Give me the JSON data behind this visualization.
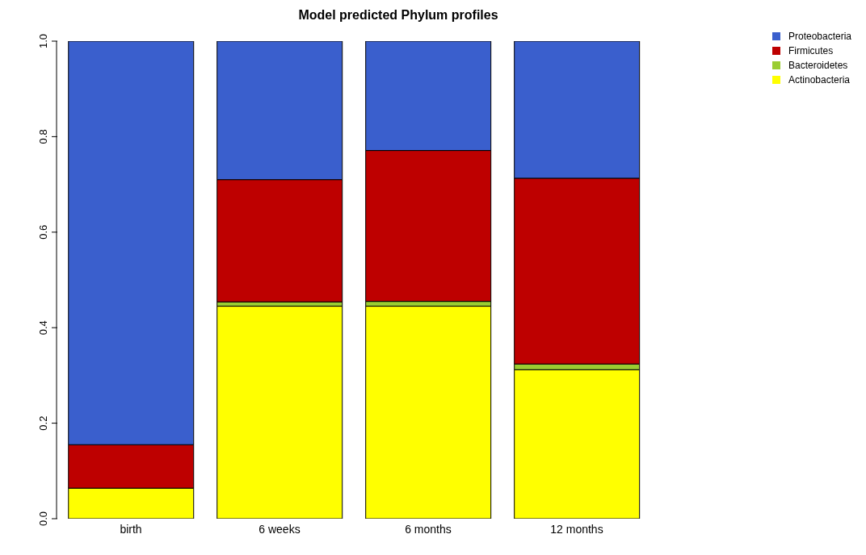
{
  "chart_data": {
    "type": "bar",
    "title": "Model predicted Phylum profiles",
    "stacked": true,
    "categories": [
      "birth",
      "6 weeks",
      "6 months",
      "12 months"
    ],
    "series": [
      {
        "name": "Actinobacteria",
        "color": "#ffff00",
        "values": [
          0.064,
          0.445,
          0.445,
          0.312
        ]
      },
      {
        "name": "Bacteroidetes",
        "color": "#9acd32",
        "values": [
          0,
          0.009,
          0.01,
          0.012
        ]
      },
      {
        "name": "Firmicutes",
        "color": "#be0000",
        "values": [
          0.091,
          0.256,
          0.316,
          0.389
        ]
      },
      {
        "name": "Proteobacteria",
        "color": "#3a5fcd",
        "values": [
          0.845,
          0.29,
          0.229,
          0.287
        ]
      }
    ],
    "ylim": [
      0,
      1
    ],
    "yticks": [
      {
        "value": 0,
        "label": "0.0"
      },
      {
        "value": 0.2,
        "label": "0.2"
      },
      {
        "value": 0.4,
        "label": "0.4"
      },
      {
        "value": 0.6,
        "label": "0.6"
      },
      {
        "value": 0.8,
        "label": "0.8"
      },
      {
        "value": 1,
        "label": "1.0"
      }
    ],
    "grid": false,
    "legend": "top right"
  }
}
